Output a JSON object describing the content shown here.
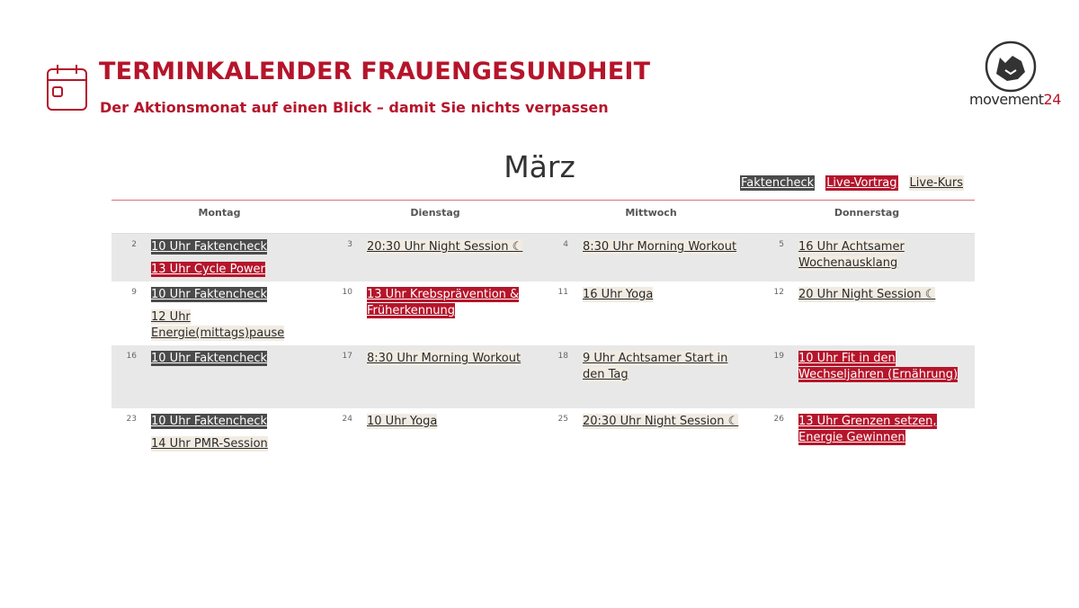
{
  "header": {
    "title": "TERMINKALENDER FRAUENGESUNDHEIT",
    "subtitle": "Der Aktionsmonat auf einen Blick – damit Sie nichts verpassen"
  },
  "logo": {
    "word": "movement",
    "number": "24"
  },
  "month": "März",
  "legend": [
    {
      "label": "Faktencheck",
      "bg": "#4b4b4b",
      "fg": "#ffffff"
    },
    {
      "label": "Live-Vortrag",
      "bg": "#b5152b",
      "fg": "#ffffff"
    },
    {
      "label": "Live-Kurs",
      "bg": "#f1ebe2",
      "fg": "#2b2b2b"
    }
  ],
  "weekdays": [
    "Montag",
    "Dienstag",
    "Mittwoch",
    "Donnerstag"
  ],
  "weeks": [
    {
      "shaded": true,
      "cells": [
        {
          "day": "2",
          "events": [
            {
              "text": "10 Uhr Faktencheck",
              "legend": 0
            },
            {
              "text": "13 Uhr Cycle Power",
              "legend": 1
            }
          ]
        },
        {
          "day": "3",
          "events": [
            {
              "text": "20:30 Uhr Night Session ☾",
              "legend": 2
            }
          ]
        },
        {
          "day": "4",
          "events": [
            {
              "text": "8:30 Uhr Morning Workout",
              "legend": 2
            }
          ]
        },
        {
          "day": "5",
          "events": [
            {
              "text": "16 Uhr Achtsamer Wochenausklang",
              "legend": 2
            }
          ]
        }
      ]
    },
    {
      "shaded": false,
      "cells": [
        {
          "day": "9",
          "events": [
            {
              "text": "10 Uhr Faktencheck",
              "legend": 0
            },
            {
              "text": "12 Uhr Energie(mittags)pause",
              "legend": 2
            }
          ]
        },
        {
          "day": "10",
          "events": [
            {
              "text": "13 Uhr Krebsprävention & Früherkennung",
              "legend": 1
            }
          ]
        },
        {
          "day": "11",
          "events": [
            {
              "text": "16 Uhr Yoga",
              "legend": 2
            }
          ]
        },
        {
          "day": "12",
          "events": [
            {
              "text": "20 Uhr Night Session ☾",
              "legend": 2
            }
          ]
        }
      ]
    },
    {
      "shaded": true,
      "cells": [
        {
          "day": "16",
          "events": [
            {
              "text": "10 Uhr Faktencheck",
              "legend": 0
            }
          ]
        },
        {
          "day": "17",
          "events": [
            {
              "text": "8:30 Uhr Morning Workout",
              "legend": 2
            }
          ]
        },
        {
          "day": "18",
          "events": [
            {
              "text": "9 Uhr Achtsamer Start in den Tag",
              "legend": 2
            }
          ]
        },
        {
          "day": "19",
          "events": [
            {
              "text": "10 Uhr Fit in den Wechseljahren (Ernährung)",
              "legend": 1
            }
          ]
        }
      ]
    },
    {
      "shaded": false,
      "cells": [
        {
          "day": "23",
          "events": [
            {
              "text": "10 Uhr Faktencheck",
              "legend": 0
            },
            {
              "text": "14 Uhr PMR-Session",
              "legend": 2
            }
          ]
        },
        {
          "day": "24",
          "events": [
            {
              "text": "10 Uhr Yoga",
              "legend": 2
            }
          ]
        },
        {
          "day": "25",
          "events": [
            {
              "text": "20:30 Uhr Night Session ☾",
              "legend": 2
            }
          ]
        },
        {
          "day": "26",
          "events": [
            {
              "text": "13 Uhr Grenzen setzen, Energie Gewinnen",
              "legend": 1
            }
          ]
        }
      ]
    }
  ]
}
